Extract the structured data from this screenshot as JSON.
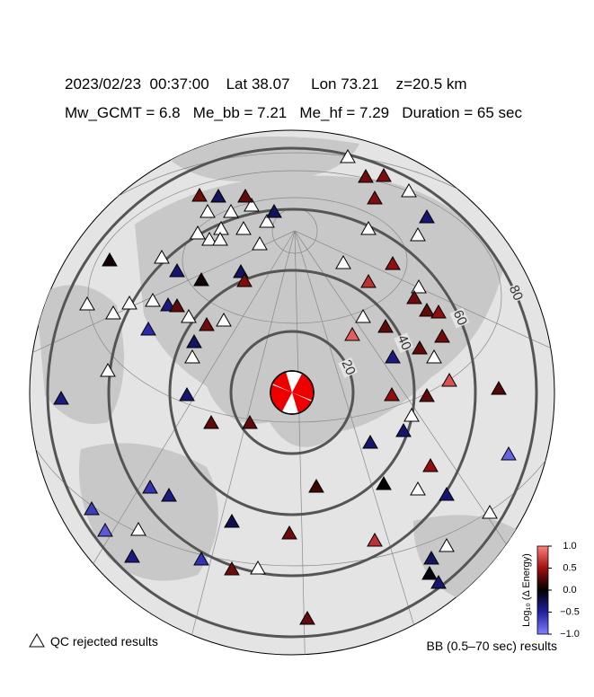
{
  "header": {
    "line1": "2023/02/23  00:37:00    Lat 38.07     Lon 73.21    z=20.5 km",
    "line2": "Mw_GCMT = 6.8   Me_bb = 7.21   Me_hf = 7.29   Duration = 65 sec"
  },
  "map": {
    "distance_rings": [
      20,
      40,
      60,
      80
    ],
    "stations": [
      {
        "value": 0.35
      },
      {
        "value": 0.4
      },
      {
        "value": 0.4
      },
      {
        "value": -0.35
      },
      {
        "value": 0.35
      },
      {
        "value": -0.3
      },
      {
        "value": 0.3
      },
      {
        "value": -0.3
      },
      {
        "value": 0.05
      },
      {
        "value": -0.35
      },
      {
        "value": -0.3
      },
      {
        "value": 0.4
      },
      {
        "value": 0.05
      },
      {
        "value": -0.4
      },
      {
        "value": 0.3
      },
      {
        "value": -0.55
      },
      {
        "value": 0.35
      },
      {
        "value": -0.3
      },
      {
        "value": 0.65
      },
      {
        "value": 0.45
      },
      {
        "value": 0.35
      },
      {
        "value": 0.3
      },
      {
        "value": 0.45
      },
      {
        "value": 0.35
      },
      {
        "value": 0.3
      },
      {
        "value": 0.85
      },
      {
        "value": -0.4
      },
      {
        "value": 0.3
      },
      {
        "value": 0.8
      },
      {
        "value": 0.3
      },
      {
        "value": 0.45
      },
      {
        "value": 0.25
      },
      {
        "value": -0.35
      },
      {
        "value": -0.4
      },
      {
        "value": 0.3
      },
      {
        "value": 0.3
      },
      {
        "value": -0.35
      },
      {
        "value": -0.35
      },
      {
        "value": 0.45
      },
      {
        "value": -0.85
      },
      {
        "value": 0.2
      },
      {
        "value": 0
      },
      {
        "value": -0.35
      },
      {
        "value": -0.6
      },
      {
        "value": -0.4
      },
      {
        "value": -0.65
      },
      {
        "value": -0.8
      },
      {
        "value": -0.25
      },
      {
        "value": 0.35
      },
      {
        "value": 0.65
      },
      {
        "value": -0.4
      },
      {
        "value": -0.6
      },
      {
        "value": 0.35
      },
      {
        "value": -0.3
      },
      {
        "value": -0.05
      },
      {
        "value": -0.35
      },
      {
        "value": 0.3
      }
    ]
  },
  "colorbar": {
    "label": "Log₁₀ (Δ Energy)",
    "lim": [
      -1,
      1
    ],
    "ticks": [
      {
        "value": 1,
        "label": "1.0"
      },
      0.5,
      {
        "value": 0,
        "label": "0.0"
      },
      {
        "value": -0.5,
        "label": "−0.5"
      },
      {
        "value": -1,
        "label": "−1.0"
      }
    ]
  },
  "legend": {
    "qc": "QC rejected results",
    "bb": "BB (0.5–70 sec) results"
  }
}
